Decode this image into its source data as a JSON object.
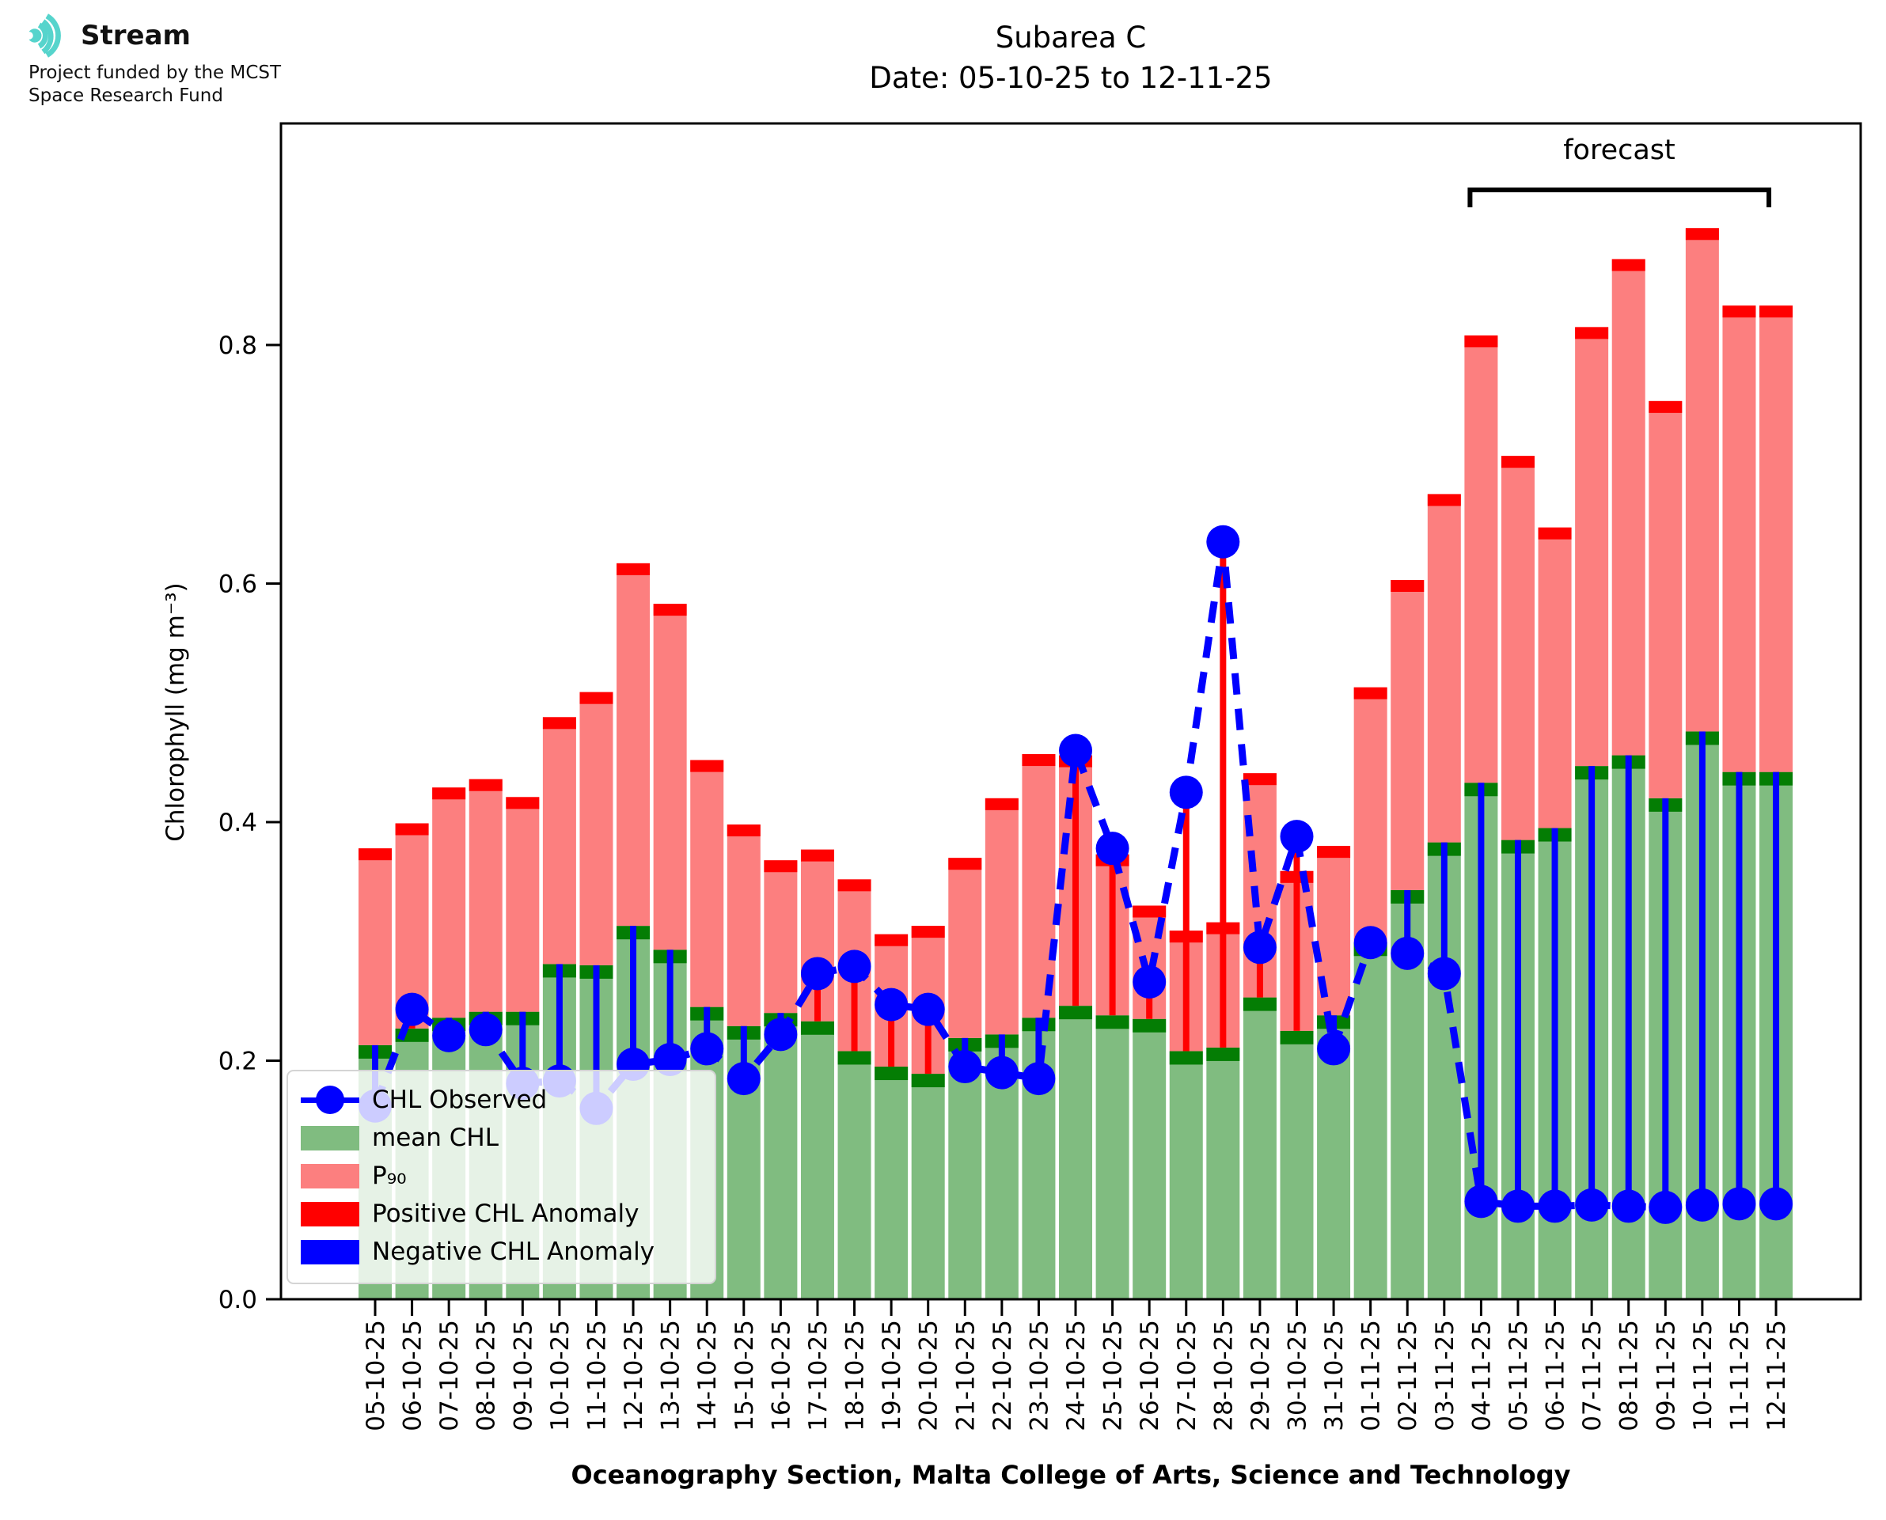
{
  "logo": {
    "brand": "Stream",
    "sub_line1": "Project funded by the MCST",
    "sub_line2": "Space Research Fund"
  },
  "title": {
    "line1": "Subarea C",
    "line2": "Date: 05-10-25 to 12-11-25"
  },
  "axes": {
    "ylabel": "Chlorophyll (mg m⁻³)",
    "xlabel": "Oceanography Section, Malta College of Arts, Science and Technology"
  },
  "legend": {
    "items": [
      {
        "label": "CHL Observed",
        "type": "line-dot",
        "color": "#0000ff"
      },
      {
        "label": "mean CHL",
        "type": "patch",
        "color": "#80bc80"
      },
      {
        "label": "P₉₀",
        "type": "patch",
        "color": "#fc7f7f"
      },
      {
        "label": "Positive CHL Anomaly",
        "type": "patch",
        "color": "#ff0000"
      },
      {
        "label": "Negative CHL Anomaly",
        "type": "patch",
        "color": "#0000ff"
      }
    ]
  },
  "chart_data": {
    "type": "bar",
    "title": "Subarea C",
    "subtitle": "Date: 05-10-25 to 12-11-25",
    "xlabel": "Oceanography Section, Malta College of Arts, Science and Technology",
    "ylabel": "Chlorophyll (mg m⁻³)",
    "ylim": [
      0.0,
      0.986
    ],
    "yticks": [
      "0.0",
      "0.2",
      "0.4",
      "0.6",
      "0.8"
    ],
    "grid": false,
    "legend_position": "lower left",
    "forecast_label": "forecast",
    "forecast_start_index": 30,
    "categories": [
      "05-10-25",
      "06-10-25",
      "07-10-25",
      "08-10-25",
      "09-10-25",
      "10-10-25",
      "11-10-25",
      "12-10-25",
      "13-10-25",
      "14-10-25",
      "15-10-25",
      "16-10-25",
      "17-10-25",
      "18-10-25",
      "19-10-25",
      "20-10-25",
      "21-10-25",
      "22-10-25",
      "23-10-25",
      "24-10-25",
      "25-10-25",
      "26-10-25",
      "27-10-25",
      "28-10-25",
      "29-10-25",
      "30-10-25",
      "31-10-25",
      "01-11-25",
      "02-11-25",
      "03-11-25",
      "04-11-25",
      "05-11-25",
      "06-11-25",
      "07-11-25",
      "08-11-25",
      "09-11-25",
      "10-11-25",
      "11-11-25",
      "12-11-25"
    ],
    "series": [
      {
        "name": "mean CHL",
        "values": [
          0.213,
          0.227,
          0.236,
          0.241,
          0.241,
          0.281,
          0.28,
          0.313,
          0.293,
          0.245,
          0.229,
          0.24,
          0.233,
          0.208,
          0.195,
          0.189,
          0.219,
          0.222,
          0.236,
          0.246,
          0.238,
          0.235,
          0.208,
          0.211,
          0.253,
          0.225,
          0.238,
          0.299,
          0.343,
          0.383,
          0.433,
          0.385,
          0.395,
          0.447,
          0.456,
          0.42,
          0.476,
          0.442,
          0.442
        ]
      },
      {
        "name": "P90",
        "values": [
          0.378,
          0.399,
          0.429,
          0.436,
          0.421,
          0.488,
          0.509,
          0.617,
          0.583,
          0.452,
          0.398,
          0.368,
          0.377,
          0.352,
          0.306,
          0.313,
          0.37,
          0.42,
          0.457,
          0.456,
          0.373,
          0.33,
          0.309,
          0.316,
          0.441,
          0.359,
          0.38,
          0.513,
          0.603,
          0.675,
          0.808,
          0.707,
          0.647,
          0.815,
          0.872,
          0.753,
          0.898,
          0.833,
          0.833
        ]
      },
      {
        "name": "CHL Observed",
        "values": [
          0.162,
          0.243,
          0.221,
          0.226,
          0.181,
          0.183,
          0.16,
          0.197,
          0.201,
          0.21,
          0.185,
          0.222,
          0.273,
          0.279,
          0.247,
          0.243,
          0.195,
          0.19,
          0.185,
          0.46,
          0.378,
          0.266,
          0.425,
          0.635,
          0.295,
          0.388,
          0.21,
          0.299,
          0.29,
          0.273,
          0.082,
          0.078,
          0.078,
          0.079,
          0.078,
          0.077,
          0.079,
          0.08,
          0.08
        ]
      }
    ],
    "colors": {
      "observed": "#0000ff",
      "mean": "#80bc80",
      "mean_edge": "#047d04",
      "p90": "#fc7f7f",
      "p90_edge": "#ff0000",
      "positive": "#ff0000",
      "negative": "#0000ff",
      "accent_teal": "#56d4cc"
    }
  }
}
